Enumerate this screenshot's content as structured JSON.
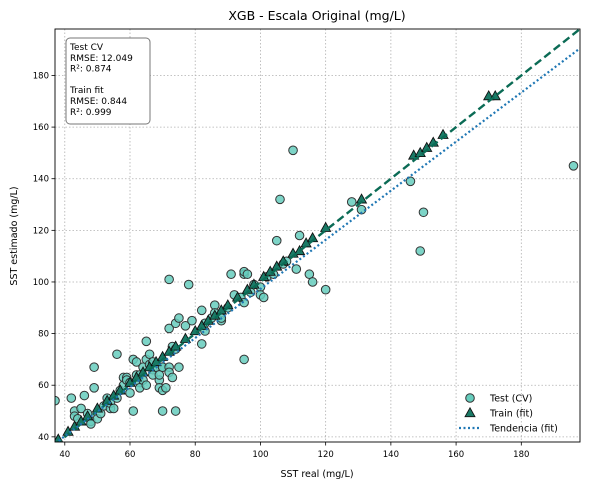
{
  "chart_data": {
    "type": "scatter",
    "title": "XGB - Escala Original (mg/L)",
    "xlabel": "SST real (mg/L)",
    "ylabel": "SST estimado (mg/L)",
    "xlim": [
      37,
      198
    ],
    "ylim": [
      38,
      198
    ],
    "xticks": [
      40,
      60,
      80,
      100,
      120,
      140,
      160,
      180
    ],
    "yticks": [
      40,
      60,
      80,
      100,
      120,
      140,
      160,
      180
    ],
    "grid": true,
    "legend_position": "lower-right",
    "colors": {
      "test": "#66cdbd",
      "train": "#1a7a66",
      "identity": "#0b6b55",
      "trend": "#1f77b4",
      "edge": "#333333"
    },
    "annotation_lines": [
      "Test CV",
      "RMSE: 12.049",
      "R²: 0.874",
      "",
      "Train fit",
      "RMSE: 0.844",
      "R²: 0.999"
    ],
    "series": [
      {
        "name": "Test (CV)",
        "marker": "circle",
        "points": [
          [
            37,
            54
          ],
          [
            42,
            55
          ],
          [
            43,
            50
          ],
          [
            43,
            48
          ],
          [
            44,
            47
          ],
          [
            45,
            51
          ],
          [
            46,
            56
          ],
          [
            47,
            49
          ],
          [
            48,
            46
          ],
          [
            48,
            45
          ],
          [
            49,
            59
          ],
          [
            49,
            67
          ],
          [
            50,
            47
          ],
          [
            51,
            49
          ],
          [
            52,
            52
          ],
          [
            53,
            55
          ],
          [
            54,
            51
          ],
          [
            54,
            53
          ],
          [
            55,
            51
          ],
          [
            56,
            55
          ],
          [
            56,
            72
          ],
          [
            57,
            58
          ],
          [
            58,
            60
          ],
          [
            58,
            63
          ],
          [
            59,
            63
          ],
          [
            59,
            62
          ],
          [
            60,
            57
          ],
          [
            60,
            61
          ],
          [
            61,
            70
          ],
          [
            61,
            50
          ],
          [
            62,
            64
          ],
          [
            62,
            69
          ],
          [
            63,
            64
          ],
          [
            63,
            61
          ],
          [
            63,
            59
          ],
          [
            64,
            67
          ],
          [
            64,
            62
          ],
          [
            65,
            70
          ],
          [
            65,
            60
          ],
          [
            65,
            77
          ],
          [
            66,
            72
          ],
          [
            66,
            68
          ],
          [
            67,
            66
          ],
          [
            67,
            64
          ],
          [
            67,
            69
          ],
          [
            68,
            67
          ],
          [
            69,
            62
          ],
          [
            69,
            64
          ],
          [
            69,
            59
          ],
          [
            70,
            58
          ],
          [
            70,
            50
          ],
          [
            70,
            67
          ],
          [
            70,
            67
          ],
          [
            71,
            59
          ],
          [
            72,
            101
          ],
          [
            72,
            67
          ],
          [
            72,
            65
          ],
          [
            72,
            82
          ],
          [
            73,
            75
          ],
          [
            73,
            63
          ],
          [
            74,
            84
          ],
          [
            74,
            74
          ],
          [
            74,
            50
          ],
          [
            75,
            86
          ],
          [
            75,
            67
          ],
          [
            77,
            83
          ],
          [
            78,
            99
          ],
          [
            79,
            85
          ],
          [
            82,
            76
          ],
          [
            82,
            89
          ],
          [
            83,
            84
          ],
          [
            83,
            81
          ],
          [
            85,
            86
          ],
          [
            86,
            91
          ],
          [
            86,
            88
          ],
          [
            88,
            85
          ],
          [
            88,
            86
          ],
          [
            90,
            90
          ],
          [
            91,
            103
          ],
          [
            92,
            95
          ],
          [
            94,
            94
          ],
          [
            95,
            103
          ],
          [
            95,
            104
          ],
          [
            95,
            92
          ],
          [
            95,
            70
          ],
          [
            96,
            103
          ],
          [
            97,
            96
          ],
          [
            98,
            99
          ],
          [
            100,
            98
          ],
          [
            100,
            95
          ],
          [
            101,
            94
          ],
          [
            102,
            102
          ],
          [
            104,
            103
          ],
          [
            105,
            116
          ],
          [
            106,
            132
          ],
          [
            107,
            107
          ],
          [
            108,
            108
          ],
          [
            110,
            151
          ],
          [
            111,
            105
          ],
          [
            112,
            118
          ],
          [
            115,
            103
          ],
          [
            116,
            100
          ],
          [
            120,
            97
          ],
          [
            128,
            131
          ],
          [
            131,
            128
          ],
          [
            146,
            139
          ],
          [
            149,
            112
          ],
          [
            150,
            127
          ],
          [
            196,
            145
          ]
        ]
      },
      {
        "name": "Train (fit)",
        "marker": "triangle",
        "points": [
          [
            38,
            39
          ],
          [
            41,
            42
          ],
          [
            43,
            44
          ],
          [
            45,
            46
          ],
          [
            47,
            48
          ],
          [
            50,
            51
          ],
          [
            53,
            54
          ],
          [
            55,
            56
          ],
          [
            57,
            58
          ],
          [
            60,
            61
          ],
          [
            62,
            63
          ],
          [
            64,
            65
          ],
          [
            66,
            67
          ],
          [
            68,
            69
          ],
          [
            70,
            71
          ],
          [
            72,
            73
          ],
          [
            74,
            75
          ],
          [
            77,
            78
          ],
          [
            80,
            81
          ],
          [
            82,
            83
          ],
          [
            84,
            85
          ],
          [
            86,
            87
          ],
          [
            88,
            89
          ],
          [
            90,
            91
          ],
          [
            93,
            94
          ],
          [
            96,
            97
          ],
          [
            98,
            99
          ],
          [
            101,
            102
          ],
          [
            103,
            104
          ],
          [
            105,
            106
          ],
          [
            107,
            108
          ],
          [
            110,
            111
          ],
          [
            112,
            112
          ],
          [
            114,
            115
          ],
          [
            116,
            117
          ],
          [
            120,
            121
          ],
          [
            131,
            132
          ],
          [
            147,
            149
          ],
          [
            149,
            150
          ],
          [
            151,
            152
          ],
          [
            153,
            154
          ],
          [
            156,
            157
          ],
          [
            170,
            172
          ],
          [
            172,
            172
          ]
        ]
      }
    ],
    "identity_line": {
      "from": [
        37,
        37
      ],
      "to": [
        198,
        198
      ]
    },
    "trend_line": {
      "name": "Tendencia (fit)",
      "from": [
        37,
        37.4
      ],
      "to": [
        198,
        190.5
      ]
    }
  }
}
